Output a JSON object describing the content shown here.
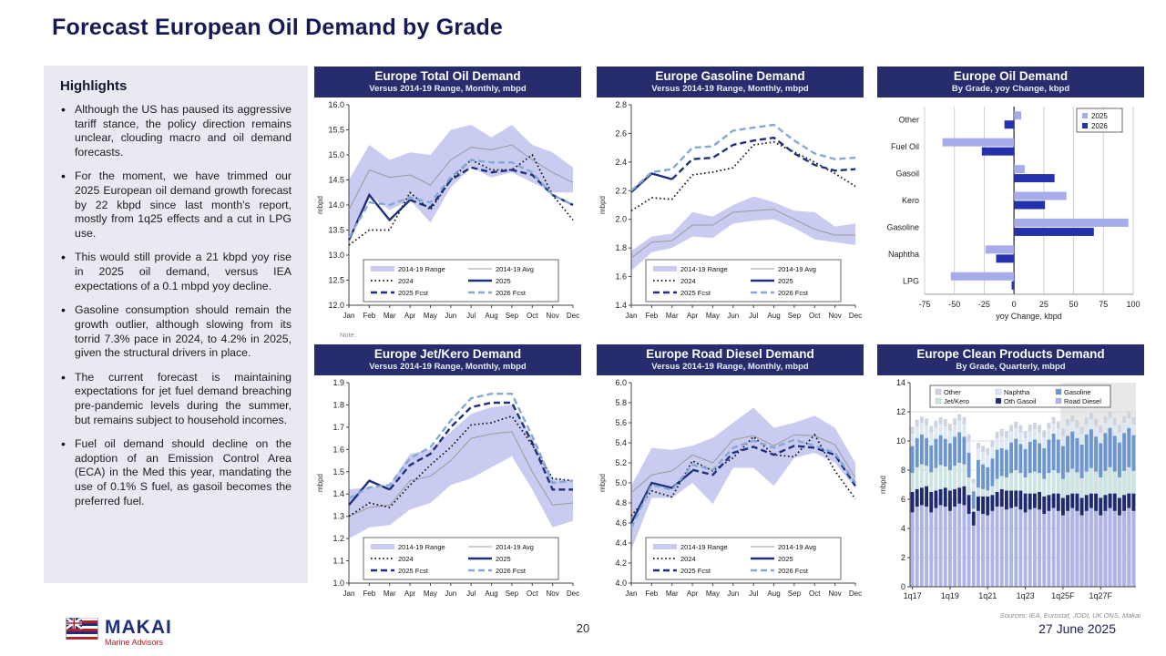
{
  "page": {
    "title": "Forecast European Oil Demand by Grade",
    "page_number": "20",
    "date": "27 June 2025",
    "logo": {
      "name": "MAKAI",
      "tagline": "Marine Advisors"
    }
  },
  "highlights": {
    "heading": "Highlights",
    "bullets": [
      "Although the US has paused its aggressive tariff stance, the policy direction remains unclear, clouding macro and oil demand forecasts.",
      "For the moment, we have trimmed our 2025 European oil demand growth forecast by 22 kbpd since last month's report, mostly from 1q25 effects and a cut in LPG use.",
      "This would still provide a 21 kbpd yoy rise in 2025 oil demand, versus IEA expectations of a 0.1 mbpd yoy decline.",
      "Gasoline consumption should remain the growth outlier, although slowing from its torrid 7.3% pace in 2024, to 4.2% in 2025, given the structural drivers in place.",
      "The current forecast is maintaining expectations for jet fuel demand breaching pre-pandemic levels during the summer, but remains subject to household incomes.",
      "Fuel oil demand should decline on the adoption of an Emission Control Area (ECA) in the Med this year, mandating the use of 0.1% S fuel, as gasoil becomes the preferred fuel."
    ]
  },
  "colors": {
    "header_navy": "#272c6c",
    "title_navy": "#151a54",
    "band": "#c9ccf0",
    "avg_gray": "#9b9b9b",
    "line_black": "#111111",
    "line_navy": "#1e2f7d",
    "line_light_blue": "#84a9d9",
    "bar_2025_light": "#a6acea",
    "bar_2026_dark": "#2530ac",
    "forecast_shade": "#e8e8e8",
    "logo_red": "#b42025",
    "panel_bg": "#e9e9f2"
  },
  "chart_data": [
    {
      "id": "total-oil",
      "type": "line",
      "title": "Europe Total Oil Demand",
      "subtitle": "Versus 2014-19 Range, Monthly, mbpd",
      "ylabel": "mbpd",
      "ylim": [
        12.0,
        16.0
      ],
      "ytick": 0.5,
      "ydecimals": 1,
      "x": [
        "Jan",
        "Feb",
        "Mar",
        "Apr",
        "May",
        "Jun",
        "Jul",
        "Aug",
        "Sep",
        "Oct",
        "Nov",
        "Dec"
      ],
      "band": {
        "name": "2014-19 Range",
        "upper": [
          14.5,
          15.2,
          14.9,
          15.05,
          15.0,
          15.5,
          15.6,
          15.35,
          15.6,
          15.2,
          15.05,
          14.75
        ],
        "lower": [
          13.4,
          14.2,
          13.9,
          14.1,
          13.65,
          14.35,
          14.75,
          14.55,
          14.65,
          14.45,
          14.25,
          14.25
        ]
      },
      "series": [
        {
          "name": "2014-19 Avg",
          "style": "avg",
          "values": [
            13.9,
            14.7,
            14.55,
            14.6,
            14.4,
            14.9,
            15.15,
            15.1,
            15.2,
            14.9,
            14.65,
            14.45
          ]
        },
        {
          "name": "2024",
          "style": "dotted",
          "values": [
            13.2,
            13.5,
            13.5,
            14.25,
            13.9,
            14.5,
            14.9,
            14.7,
            14.7,
            15.0,
            14.2,
            13.7
          ]
        },
        {
          "name": "2025",
          "style": "solid",
          "values": [
            13.3,
            14.2,
            13.7,
            14.1,
            null,
            null,
            null,
            null,
            null,
            null,
            null,
            null
          ]
        },
        {
          "name": "2025 Fcst",
          "style": "dashed_dark",
          "values": [
            null,
            null,
            null,
            14.1,
            13.95,
            14.5,
            14.75,
            14.65,
            14.7,
            14.6,
            14.2,
            14.0
          ]
        },
        {
          "name": "2026 Fcst",
          "style": "dashed_light",
          "values": [
            13.35,
            14.05,
            14.0,
            14.15,
            14.05,
            14.55,
            14.9,
            14.85,
            14.85,
            14.65,
            14.2,
            14.0
          ]
        }
      ],
      "note": "Note:"
    },
    {
      "id": "gasoline",
      "type": "line",
      "title": "Europe Gasoline Demand",
      "subtitle": "Versus 2014-19 Range, Monthly, mbpd",
      "ylabel": "mbpd",
      "ylim": [
        1.4,
        2.8
      ],
      "ytick": 0.2,
      "ydecimals": 1,
      "x": [
        "Jan",
        "Feb",
        "Mar",
        "Apr",
        "May",
        "Jun",
        "Jul",
        "Aug",
        "Sep",
        "Oct",
        "Nov",
        "Dec"
      ],
      "band": {
        "name": "2014-19 Range",
        "upper": [
          1.78,
          1.88,
          1.9,
          2.05,
          2.02,
          2.1,
          2.16,
          2.12,
          2.06,
          2.05,
          1.95,
          1.97
        ],
        "lower": [
          1.64,
          1.77,
          1.8,
          1.88,
          1.87,
          1.97,
          1.99,
          2.0,
          1.94,
          1.86,
          1.84,
          1.82
        ]
      },
      "series": [
        {
          "name": "2014-19 Avg",
          "style": "avg",
          "values": [
            1.73,
            1.84,
            1.85,
            1.96,
            1.96,
            2.05,
            2.06,
            2.07,
            2.0,
            1.93,
            1.89,
            1.89
          ]
        },
        {
          "name": "2024",
          "style": "dotted",
          "values": [
            2.06,
            2.15,
            2.14,
            2.31,
            2.33,
            2.36,
            2.52,
            2.54,
            2.47,
            2.4,
            2.32,
            2.23
          ]
        },
        {
          "name": "2025",
          "style": "solid",
          "values": [
            2.19,
            2.32,
            2.28,
            null,
            null,
            null,
            null,
            null,
            null,
            null,
            null,
            null
          ]
        },
        {
          "name": "2025 Fcst",
          "style": "dashed_dark",
          "values": [
            null,
            null,
            2.28,
            2.42,
            2.43,
            2.52,
            2.55,
            2.57,
            2.46,
            2.38,
            2.34,
            2.35
          ]
        },
        {
          "name": "2026 Fcst",
          "style": "dashed_light",
          "values": [
            2.2,
            2.33,
            2.35,
            2.5,
            2.51,
            2.62,
            2.64,
            2.66,
            2.55,
            2.46,
            2.42,
            2.43
          ]
        }
      ],
      "note": ""
    },
    {
      "id": "yoy-by-grade",
      "type": "barh",
      "title": "Europe Oil Demand",
      "subtitle": "By Grade, yoy Change, kbpd",
      "categories": [
        "Other",
        "Fuel Oil",
        "Gasoil",
        "Kero",
        "Gasoline",
        "Naphtha",
        "LPG"
      ],
      "series": [
        {
          "name": "2025",
          "color": "#a6acea",
          "values": [
            6,
            -60,
            9,
            44,
            96,
            -24,
            -53
          ]
        },
        {
          "name": "2026",
          "color": "#2530ac",
          "values": [
            -8,
            -27,
            34,
            26,
            67,
            -15,
            -2
          ]
        }
      ],
      "xlim": [
        -75,
        100
      ],
      "xtick": 25,
      "xlabel": "yoy Change, kbpd"
    },
    {
      "id": "jet-kero",
      "type": "line",
      "title": "Europe Jet/Kero Demand",
      "subtitle": "Versus 2014-19 Range, Monthly, mbpd",
      "ylabel": "mbpd",
      "ylim": [
        1.0,
        1.9
      ],
      "ytick": 0.1,
      "ydecimals": 1,
      "x": [
        "Jan",
        "Feb",
        "Mar",
        "Apr",
        "May",
        "Jun",
        "Jul",
        "Aug",
        "Sep",
        "Oct",
        "Nov",
        "Dec"
      ],
      "band": {
        "name": "2014-19 Range",
        "upper": [
          1.42,
          1.43,
          1.44,
          1.58,
          1.6,
          1.68,
          1.76,
          1.79,
          1.8,
          1.65,
          1.47,
          1.46
        ],
        "lower": [
          1.2,
          1.25,
          1.26,
          1.33,
          1.36,
          1.44,
          1.47,
          1.52,
          1.57,
          1.42,
          1.25,
          1.28
        ]
      },
      "series": [
        {
          "name": "2014-19 Avg",
          "style": "avg",
          "values": [
            1.3,
            1.34,
            1.35,
            1.46,
            1.48,
            1.55,
            1.65,
            1.67,
            1.68,
            1.5,
            1.35,
            1.36
          ]
        },
        {
          "name": "2024",
          "style": "dotted",
          "values": [
            1.3,
            1.36,
            1.34,
            1.44,
            1.53,
            1.61,
            1.71,
            1.72,
            1.75,
            1.62,
            1.47,
            1.46
          ]
        },
        {
          "name": "2025",
          "style": "solid",
          "values": [
            1.35,
            1.46,
            1.42,
            null,
            null,
            null,
            null,
            null,
            null,
            null,
            null,
            null
          ]
        },
        {
          "name": "2025 Fcst",
          "style": "dashed_dark",
          "values": [
            null,
            null,
            1.42,
            1.53,
            1.58,
            1.7,
            1.79,
            1.81,
            1.81,
            1.63,
            1.42,
            1.42
          ]
        },
        {
          "name": "2026 Fcst",
          "style": "dashed_light",
          "values": [
            1.38,
            1.43,
            1.44,
            1.56,
            1.61,
            1.73,
            1.83,
            1.85,
            1.85,
            1.66,
            1.45,
            1.46
          ]
        }
      ],
      "note": ""
    },
    {
      "id": "road-diesel",
      "type": "line",
      "title": "Europe Road Diesel Demand",
      "subtitle": "Versus 2014-19 Range, Monthly, mbpd",
      "ylabel": "mbpd",
      "ylim": [
        4.0,
        6.0
      ],
      "ytick": 0.2,
      "ydecimals": 1,
      "x": [
        "Jan",
        "Feb",
        "Mar",
        "Apr",
        "May",
        "Jun",
        "Jul",
        "Aug",
        "Sep",
        "Oct",
        "Nov",
        "Dec"
      ],
      "band": {
        "name": "2014-19 Range",
        "upper": [
          4.97,
          5.35,
          5.33,
          5.37,
          5.45,
          5.6,
          5.75,
          5.55,
          5.6,
          5.67,
          5.55,
          5.2
        ],
        "lower": [
          4.33,
          4.85,
          4.85,
          5.0,
          4.79,
          5.15,
          5.15,
          4.97,
          5.25,
          5.3,
          5.2,
          4.95
        ]
      },
      "series": [
        {
          "name": "2014-19 Avg",
          "style": "avg",
          "values": [
            4.9,
            5.08,
            5.12,
            5.28,
            5.2,
            5.43,
            5.47,
            5.37,
            5.48,
            5.47,
            5.38,
            5.05
          ]
        },
        {
          "name": "2024",
          "style": "dotted",
          "values": [
            4.67,
            4.92,
            4.86,
            5.22,
            5.12,
            5.25,
            5.46,
            5.28,
            5.26,
            5.48,
            5.12,
            4.84
          ]
        },
        {
          "name": "2025",
          "style": "solid",
          "values": [
            4.6,
            5.0,
            4.95,
            5.12,
            null,
            null,
            null,
            null,
            null,
            null,
            null,
            null
          ]
        },
        {
          "name": "2025 Fcst",
          "style": "dashed_dark",
          "values": [
            null,
            null,
            null,
            5.13,
            5.08,
            5.3,
            5.36,
            5.28,
            5.37,
            5.35,
            5.28,
            4.97
          ]
        },
        {
          "name": "2026 Fcst",
          "style": "dashed_light",
          "values": [
            4.55,
            4.98,
            4.93,
            5.18,
            5.13,
            5.35,
            5.42,
            5.35,
            5.43,
            5.37,
            5.3,
            5.0
          ]
        }
      ],
      "note": ""
    },
    {
      "id": "clean-products",
      "type": "stacked",
      "title": "Europe Clean Products Demand",
      "subtitle": "By Grade, Quarterly, mbpd",
      "ylabel": "mbpd",
      "ylim": [
        0,
        14
      ],
      "ytick": 2,
      "x_tick_labels": [
        "1q17",
        "1q19",
        "1q21",
        "1q23",
        "1q25F",
        "1q27F"
      ],
      "tick_every": 8,
      "bars": 48,
      "forecast_start_index": 32,
      "legend": [
        {
          "label": "Other",
          "color": "#cfd3e0"
        },
        {
          "label": "Naphtha",
          "color": "#dde8f4"
        },
        {
          "label": "Gasoline",
          "color": "#6b96cf"
        },
        {
          "label": "Jet/Kero",
          "color": "#cde4e4"
        },
        {
          "label": "Oth Gasoil",
          "color": "#1f2970"
        },
        {
          "label": "Road Diesel",
          "color": "#aeb3e8"
        }
      ],
      "series": [
        {
          "name": "Road Diesel",
          "color": "#aeb3e8",
          "values": [
            5.1,
            5.5,
            5.6,
            5.5,
            5.1,
            5.4,
            5.6,
            5.5,
            5.2,
            5.5,
            5.7,
            5.6,
            5.0,
            4.2,
            5.2,
            5.0,
            4.9,
            5.2,
            5.5,
            5.5,
            5.3,
            5.4,
            5.5,
            5.3,
            5.1,
            5.3,
            5.4,
            5.3,
            5.0,
            5.2,
            5.4,
            5.2,
            4.9,
            5.2,
            5.4,
            5.2,
            4.9,
            5.2,
            5.4,
            5.2,
            4.9,
            5.2,
            5.4,
            5.2,
            4.9,
            5.2,
            5.4,
            5.2
          ]
        },
        {
          "name": "Oth Gasoil",
          "color": "#1f2970",
          "values": [
            1.4,
            1.2,
            1.2,
            1.4,
            1.4,
            1.2,
            1.1,
            1.3,
            1.4,
            1.2,
            1.1,
            1.3,
            1.3,
            0.95,
            1.0,
            1.2,
            1.3,
            1.1,
            1.0,
            1.2,
            1.3,
            1.2,
            1.1,
            1.3,
            1.3,
            1.1,
            1.0,
            1.2,
            1.2,
            1.1,
            1.0,
            1.2,
            1.2,
            1.1,
            1.0,
            1.2,
            1.2,
            1.1,
            1.0,
            1.2,
            1.2,
            1.1,
            1.0,
            1.2,
            1.2,
            1.1,
            1.0,
            1.2
          ]
        },
        {
          "name": "Jet/Kero",
          "color": "#cde4e4",
          "values": [
            1.3,
            1.5,
            1.6,
            1.4,
            1.35,
            1.55,
            1.65,
            1.45,
            1.4,
            1.6,
            1.7,
            1.5,
            1.2,
            0.2,
            0.6,
            0.5,
            0.4,
            0.6,
            0.9,
            0.9,
            0.9,
            1.2,
            1.4,
            1.2,
            1.1,
            1.4,
            1.5,
            1.3,
            1.2,
            1.5,
            1.6,
            1.4,
            1.3,
            1.55,
            1.7,
            1.45,
            1.35,
            1.6,
            1.75,
            1.5,
            1.4,
            1.65,
            1.8,
            1.5,
            1.4,
            1.65,
            1.8,
            1.55
          ]
        },
        {
          "name": "Gasoline",
          "color": "#6b96cf",
          "values": [
            1.85,
            2.0,
            2.05,
            1.9,
            1.85,
            2.0,
            2.05,
            1.9,
            1.85,
            2.0,
            2.1,
            1.9,
            1.7,
            1.2,
            1.9,
            1.7,
            1.6,
            1.9,
            2.0,
            1.9,
            1.9,
            2.1,
            2.15,
            2.0,
            1.95,
            2.15,
            2.2,
            2.05,
            2.1,
            2.3,
            2.5,
            2.3,
            2.25,
            2.5,
            2.55,
            2.35,
            2.3,
            2.55,
            2.65,
            2.4,
            2.35,
            2.6,
            2.7,
            2.45,
            2.4,
            2.6,
            2.7,
            2.45
          ]
        },
        {
          "name": "Naphtha",
          "color": "#dde8f4",
          "values": [
            0.85,
            0.8,
            0.78,
            0.85,
            0.85,
            0.8,
            0.78,
            0.85,
            0.85,
            0.8,
            0.78,
            0.85,
            0.8,
            0.55,
            0.78,
            0.82,
            0.85,
            0.8,
            0.78,
            0.82,
            0.8,
            0.75,
            0.72,
            0.78,
            0.75,
            0.72,
            0.7,
            0.75,
            0.75,
            0.72,
            0.7,
            0.75,
            0.72,
            0.7,
            0.68,
            0.72,
            0.72,
            0.7,
            0.68,
            0.72,
            0.72,
            0.7,
            0.68,
            0.72,
            0.72,
            0.7,
            0.68,
            0.72
          ]
        },
        {
          "name": "Other",
          "color": "#cfd3e0",
          "values": [
            0.48,
            0.45,
            0.45,
            0.5,
            0.48,
            0.45,
            0.45,
            0.5,
            0.48,
            0.45,
            0.45,
            0.5,
            0.45,
            0.3,
            0.4,
            0.45,
            0.48,
            0.45,
            0.45,
            0.5,
            0.48,
            0.45,
            0.45,
            0.5,
            0.48,
            0.45,
            0.45,
            0.5,
            0.48,
            0.45,
            0.45,
            0.5,
            0.48,
            0.45,
            0.45,
            0.5,
            0.48,
            0.45,
            0.45,
            0.5,
            0.48,
            0.45,
            0.45,
            0.5,
            0.48,
            0.45,
            0.45,
            0.5
          ]
        }
      ],
      "sources": "Sources: IEA, Eurostat, JODI, UK ONS, Makai"
    }
  ]
}
